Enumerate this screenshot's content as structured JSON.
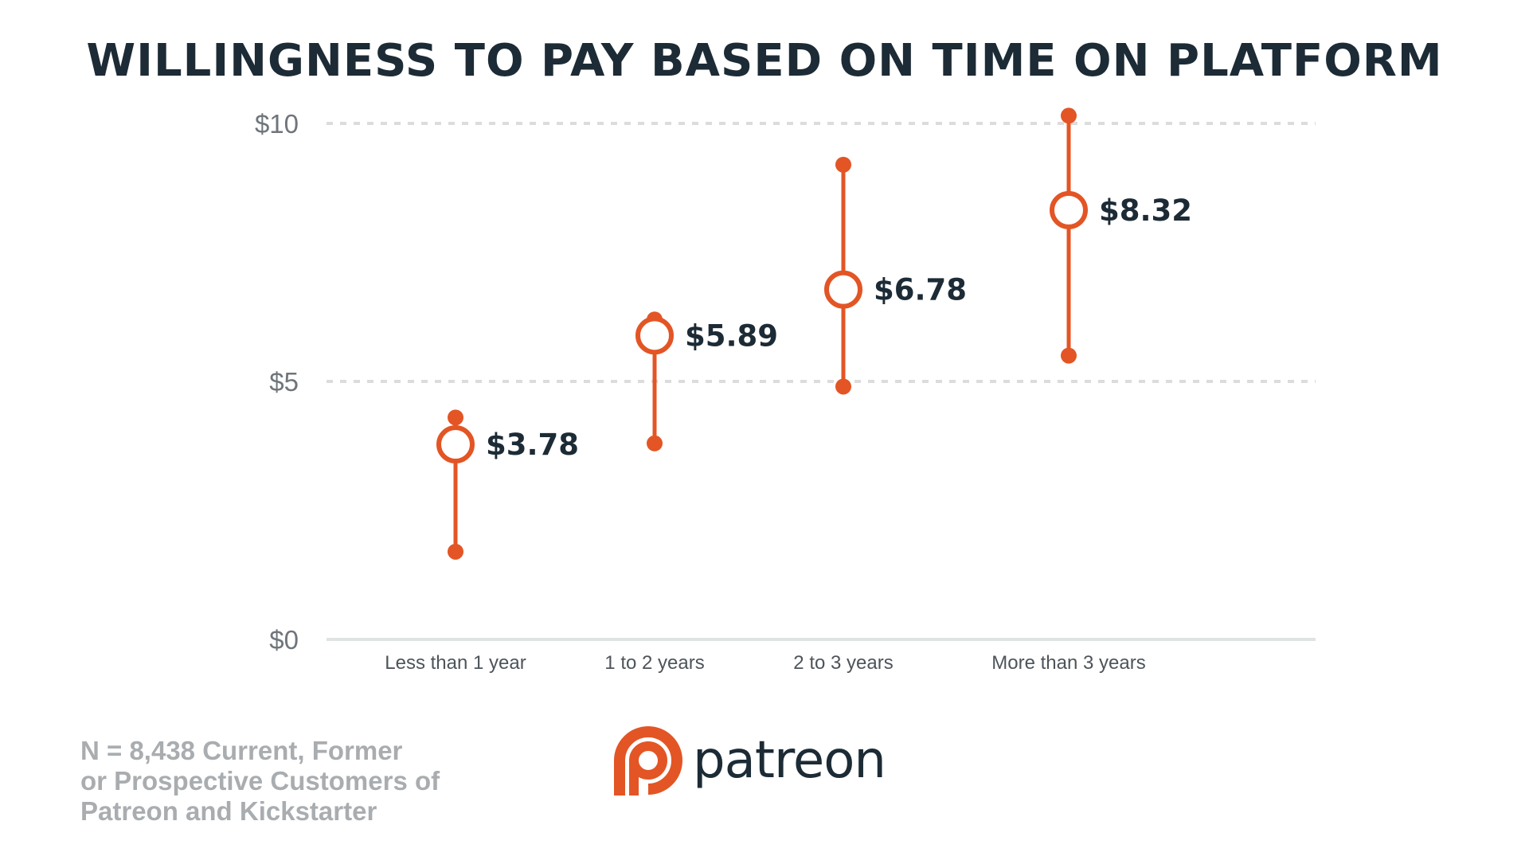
{
  "title": "WILLINGNESS TO PAY BASED ON TIME ON PLATFORM",
  "footnote": {
    "lines": [
      "N = 8,438 Current, Former",
      "or Prospective Customers of",
      "Patreon and Kickstarter"
    ]
  },
  "logo": {
    "wordmark": "patreon",
    "icon": "patreon-logo-icon"
  },
  "colors": {
    "accent": "#e35525",
    "text_dark": "#1c2b35",
    "axis": "#dfe3e4",
    "grid": "#dcdcdc",
    "footnote": "#a9adb0"
  },
  "chart_data": {
    "type": "range",
    "title": "WILLINGNESS TO PAY BASED ON TIME ON PLATFORM",
    "xlabel": "",
    "ylabel": "",
    "ylim": [
      0,
      10
    ],
    "yticks": [
      0,
      5,
      10
    ],
    "ytick_labels": [
      "$0",
      "$5",
      "$10"
    ],
    "grid": true,
    "categories": [
      "Less than 1 year",
      "1 to 2 years",
      "2 to 3 years",
      "More than 3 years"
    ],
    "values": [
      3.78,
      5.89,
      6.78,
      8.32
    ],
    "value_labels": [
      "$3.78",
      "$5.89",
      "$6.78",
      "$8.32"
    ],
    "low": [
      1.7,
      3.8,
      4.9,
      5.5
    ],
    "high": [
      4.3,
      6.2,
      9.2,
      10.15
    ]
  }
}
